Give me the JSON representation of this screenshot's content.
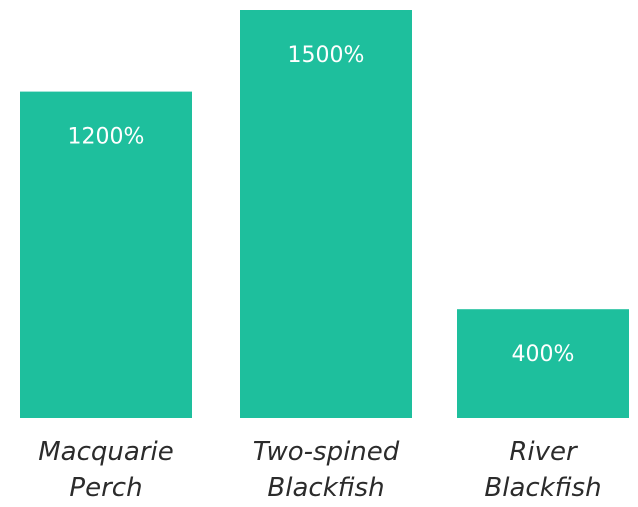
{
  "chart_data": {
    "type": "bar",
    "categories": [
      [
        "Macquarie",
        "Perch"
      ],
      [
        "Two-spined",
        "Blackfish"
      ],
      [
        "River",
        "Blackfish"
      ]
    ],
    "values": [
      1200,
      1500,
      400
    ],
    "data_labels": [
      "1200%",
      "1500%",
      "400%"
    ],
    "title": "",
    "xlabel": "",
    "ylabel": "",
    "ylim": [
      0,
      1500
    ],
    "grid": false,
    "legend": "none",
    "bar_color": "#1ebf9d"
  }
}
